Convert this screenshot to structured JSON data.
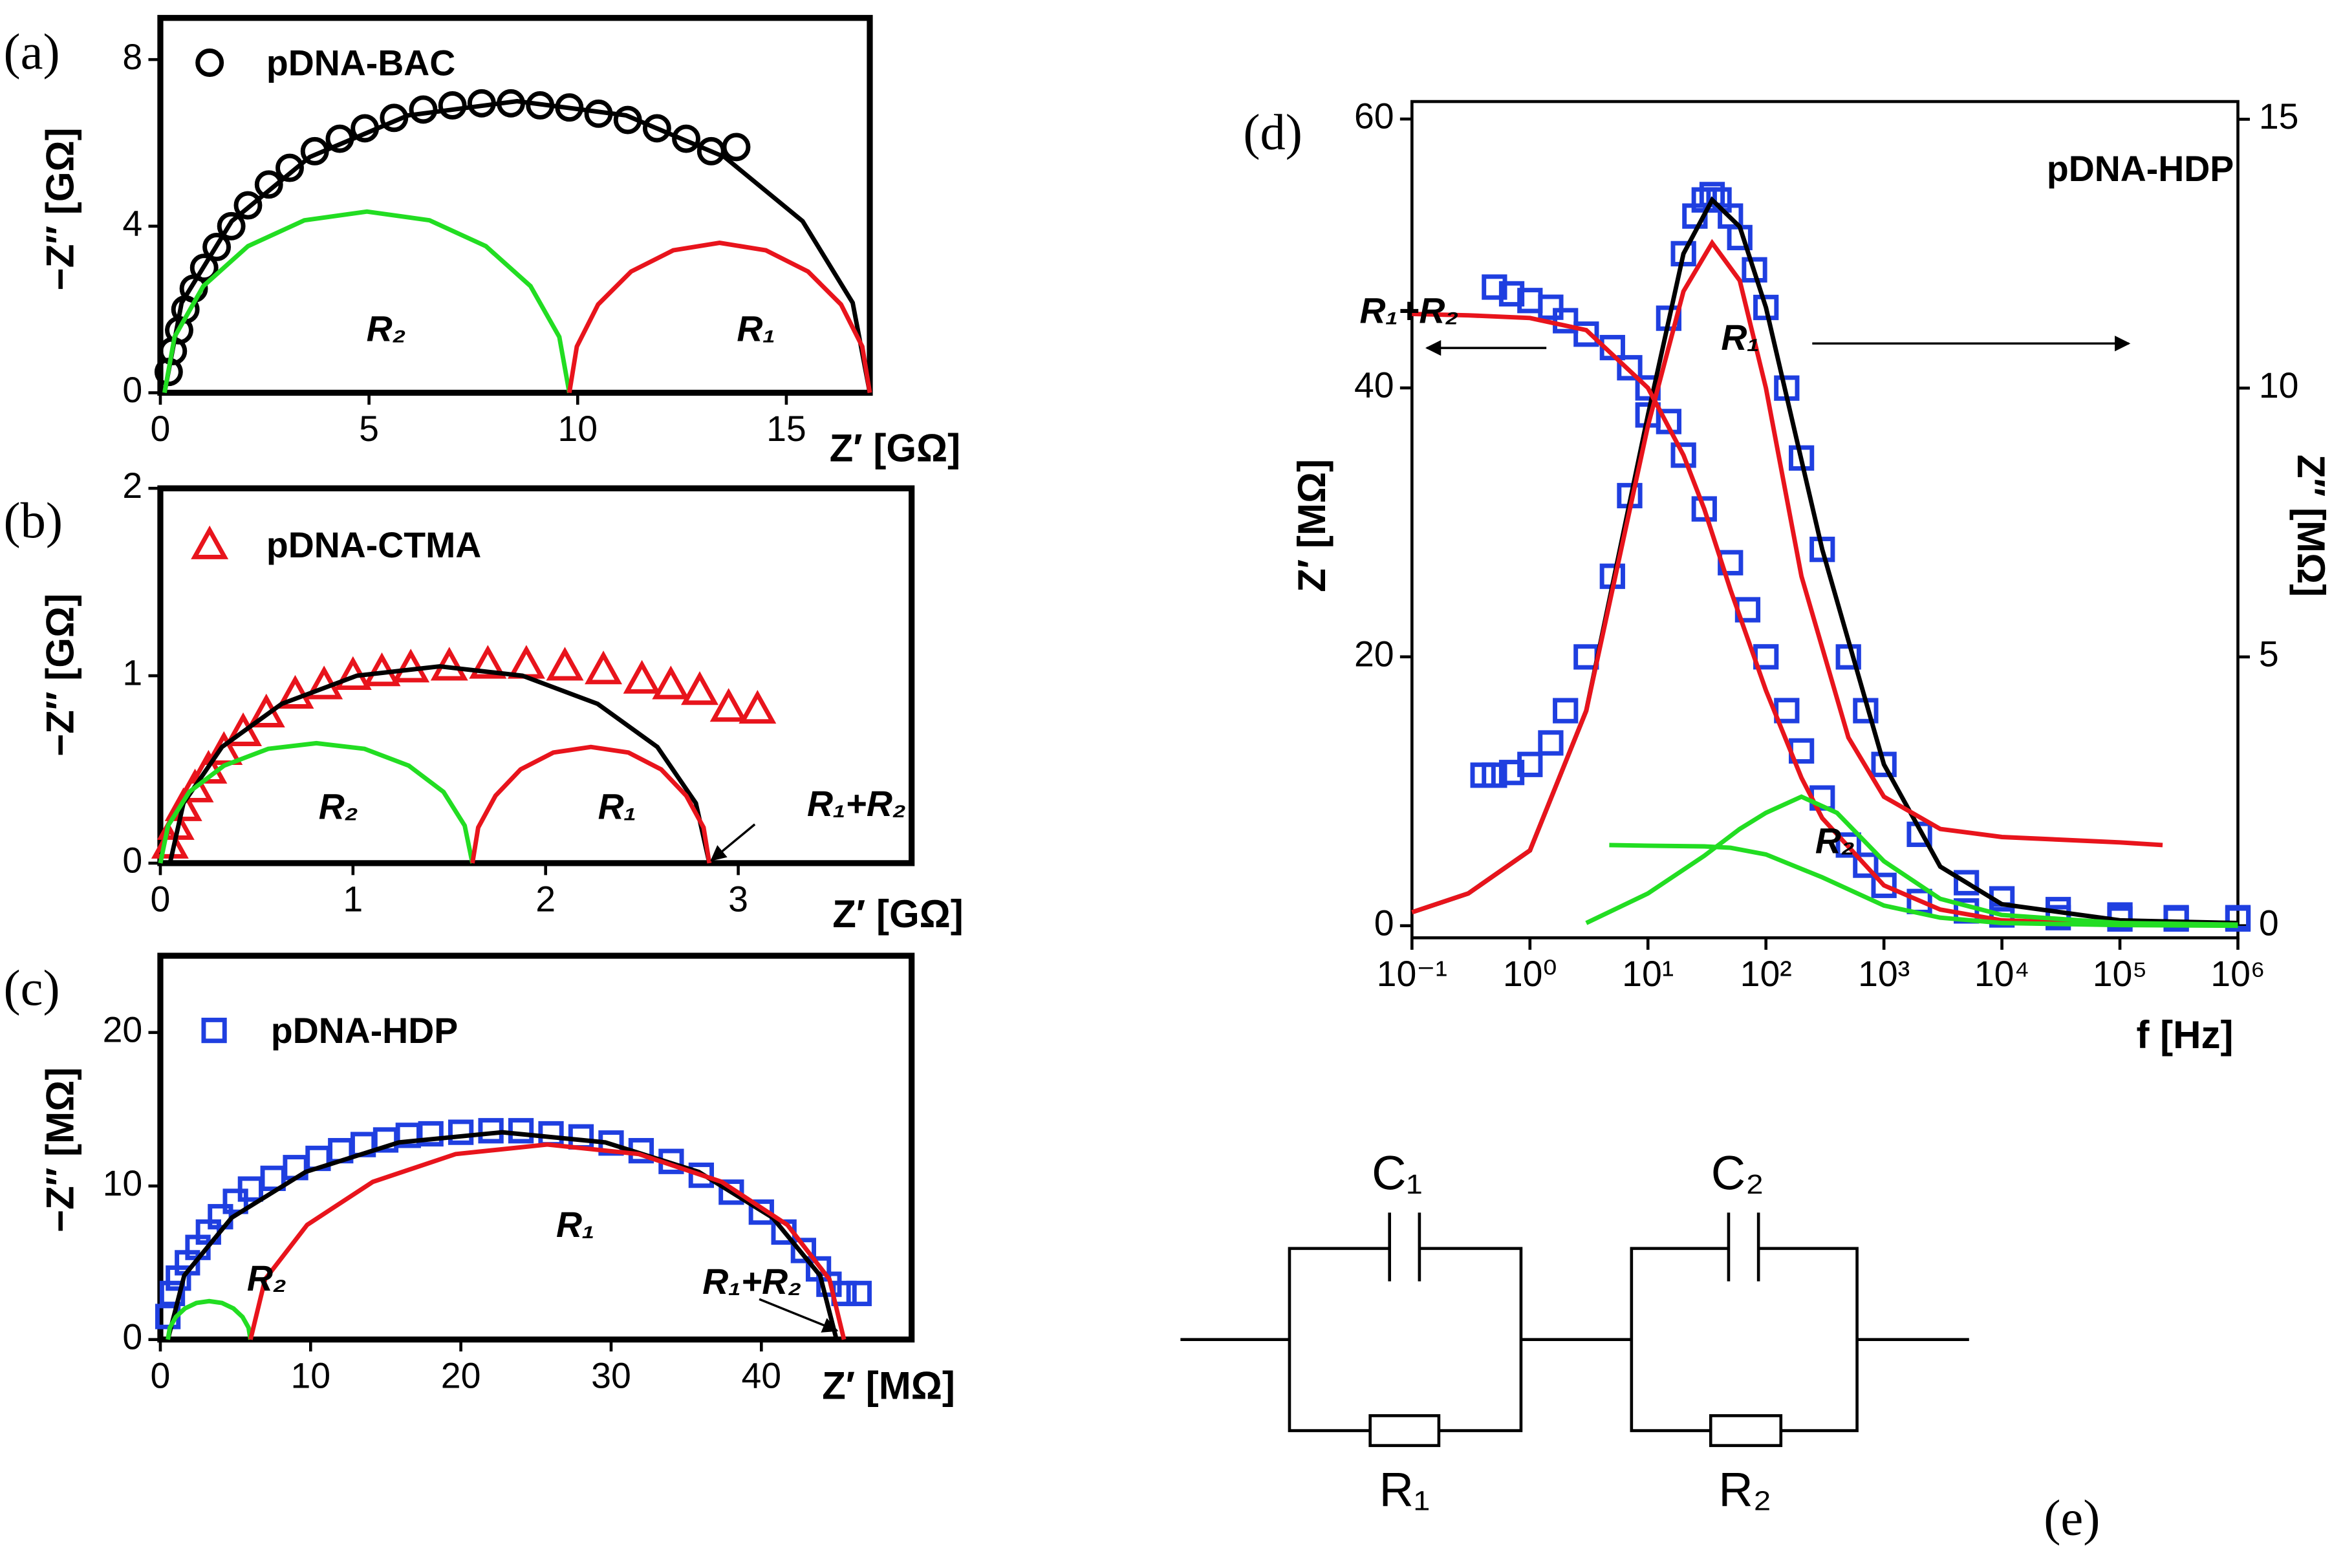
{
  "chart_data": [
    {
      "type": "scatter",
      "panel_label": "(a)",
      "xlabel": "Z′ [GΩ]",
      "ylabel": "−Z″ [GΩ]",
      "xlim": [
        0,
        17
      ],
      "xticks": [
        0,
        5,
        10,
        15
      ],
      "ylim": [
        0,
        9
      ],
      "yticks": [
        0,
        4,
        8
      ],
      "legend": "upper left",
      "annotations": [
        "R₂",
        "R₁"
      ],
      "series": [
        {
          "name": "pDNA-BAC",
          "color": "#000000",
          "marker": "circle",
          "x": [
            0.2,
            0.3,
            0.45,
            0.6,
            0.8,
            1.05,
            1.35,
            1.7,
            2.1,
            2.6,
            3.1,
            3.7,
            4.3,
            4.9,
            5.6,
            6.3,
            7.0,
            7.7,
            8.4,
            9.1,
            9.8,
            10.5,
            11.2,
            11.9,
            12.6,
            13.2,
            13.8
          ],
          "values": [
            0.5,
            1.0,
            1.5,
            2.0,
            2.5,
            3.0,
            3.5,
            4.0,
            4.5,
            5.0,
            5.4,
            5.8,
            6.1,
            6.35,
            6.6,
            6.8,
            6.9,
            6.95,
            6.95,
            6.9,
            6.85,
            6.7,
            6.55,
            6.35,
            6.1,
            5.8,
            5.9
          ]
        },
        {
          "color": "#000000",
          "x": [
            0.1,
            0.51,
            1.71,
            3.58,
            5.94,
            8.55,
            11.16,
            13.52,
            15.39,
            16.59,
            17.0
          ],
          "values": [
            0,
            2.16,
            4.12,
            5.66,
            6.66,
            7.0,
            6.66,
            5.66,
            4.12,
            2.16,
            0
          ]
        },
        {
          "color": "#22dd22",
          "x": [
            0.1,
            0.34,
            1.03,
            2.1,
            3.45,
            4.95,
            6.45,
            7.8,
            8.87,
            9.56,
            9.8
          ],
          "values": [
            0,
            1.34,
            2.56,
            3.52,
            4.14,
            4.35,
            4.14,
            3.52,
            2.56,
            1.34,
            0
          ]
        },
        {
          "color": "#e8141c",
          "x": [
            9.8,
            9.98,
            10.49,
            11.28,
            12.29,
            13.4,
            14.51,
            15.52,
            16.31,
            16.82,
            17.0
          ],
          "values": [
            0,
            1.11,
            2.12,
            2.91,
            3.42,
            3.6,
            3.42,
            2.91,
            2.12,
            1.11,
            0
          ]
        }
      ]
    },
    {
      "type": "scatter",
      "panel_label": "(b)",
      "xlabel": "Z′ [GΩ]",
      "ylabel": "−Z″ [GΩ]",
      "xlim": [
        0,
        3.9
      ],
      "xticks": [
        0,
        1,
        2,
        3
      ],
      "ylim": [
        0,
        2
      ],
      "yticks": [
        0,
        1,
        2
      ],
      "legend": "upper left",
      "annotations": [
        "R₂",
        "R₁",
        "R₁+R₂"
      ],
      "series": [
        {
          "name": "pDNA-CTMA",
          "color": "#e8141c",
          "marker": "triangle",
          "x": [
            0.05,
            0.08,
            0.12,
            0.18,
            0.25,
            0.33,
            0.43,
            0.55,
            0.7,
            0.85,
            1.0,
            1.15,
            1.3,
            1.5,
            1.7,
            1.9,
            2.1,
            2.3,
            2.5,
            2.65,
            2.8,
            2.95,
            3.1
          ],
          "values": [
            0.1,
            0.2,
            0.3,
            0.4,
            0.5,
            0.6,
            0.7,
            0.8,
            0.9,
            0.95,
            1.0,
            1.02,
            1.04,
            1.05,
            1.06,
            1.06,
            1.05,
            1.03,
            0.98,
            0.95,
            0.92,
            0.83,
            0.82
          ]
        },
        {
          "color": "#000000",
          "x": [
            0.05,
            0.12,
            0.32,
            0.63,
            1.02,
            1.45,
            1.88,
            2.27,
            2.58,
            2.78,
            2.85
          ],
          "values": [
            0,
            0.32,
            0.62,
            0.85,
            1.0,
            1.05,
            1.0,
            0.85,
            0.62,
            0.32,
            0
          ]
        },
        {
          "color": "#22dd22",
          "x": [
            0,
            0.04,
            0.15,
            0.33,
            0.56,
            0.81,
            1.06,
            1.29,
            1.47,
            1.58,
            1.62
          ],
          "values": [
            0,
            0.2,
            0.38,
            0.52,
            0.61,
            0.64,
            0.61,
            0.52,
            0.38,
            0.2,
            0
          ]
        },
        {
          "color": "#e8141c",
          "x": [
            1.62,
            1.65,
            1.74,
            1.87,
            2.04,
            2.235,
            2.43,
            2.6,
            2.73,
            2.82,
            2.85
          ],
          "values": [
            0,
            0.19,
            0.36,
            0.5,
            0.59,
            0.62,
            0.59,
            0.5,
            0.36,
            0.19,
            0
          ]
        }
      ]
    },
    {
      "type": "scatter",
      "panel_label": "(c)",
      "xlabel": "Z′ [MΩ]",
      "ylabel": "−Z″ [MΩ]",
      "xlim": [
        0,
        50
      ],
      "xticks": [
        0,
        10,
        20,
        30,
        40
      ],
      "ylim": [
        0,
        25
      ],
      "yticks": [
        0,
        10,
        20
      ],
      "legend": "upper left",
      "annotations": [
        "R₂",
        "R₁",
        "R₁+R₂"
      ],
      "series": [
        {
          "name": "pDNA-HDP",
          "color": "#1f3fe0",
          "marker": "square",
          "x": [
            0.5,
            0.8,
            1.2,
            1.8,
            2.5,
            3.2,
            4,
            5,
            6,
            7.5,
            9,
            10.5,
            12,
            13.5,
            15,
            16.5,
            18,
            20,
            22,
            24,
            26,
            28,
            30,
            32,
            34,
            36,
            38,
            40,
            41.5,
            42.8,
            43.8,
            44.5,
            45.5,
            46.5
          ],
          "values": [
            1.5,
            3,
            4,
            5,
            6,
            7,
            8,
            9,
            9.8,
            10.5,
            11.2,
            11.8,
            12.3,
            12.7,
            13,
            13.3,
            13.4,
            13.5,
            13.6,
            13.6,
            13.4,
            13.2,
            12.8,
            12.3,
            11.6,
            10.7,
            9.6,
            8.3,
            7,
            5.8,
            4.6,
            3.6,
            3,
            3
          ]
        },
        {
          "color": "#000000",
          "x": [
            0.5,
            1.59,
            4.75,
            9.67,
            15.88,
            22.75,
            29.62,
            35.83,
            40.75,
            43.91,
            45
          ],
          "values": [
            0,
            4.17,
            7.94,
            10.92,
            12.84,
            13.5,
            12.84,
            10.92,
            7.94,
            4.17,
            0
          ]
        },
        {
          "color": "#22dd22",
          "x": [
            0.5,
            0.63,
            1.03,
            1.63,
            2.4,
            3.25,
            4.1,
            4.87,
            5.47,
            5.87,
            6
          ],
          "values": [
            0,
            0.77,
            1.47,
            2.02,
            2.38,
            2.5,
            2.38,
            2.02,
            1.47,
            0.77,
            0
          ]
        },
        {
          "color": "#e8141c",
          "x": [
            6,
            6.97,
            9.77,
            14.14,
            19.65,
            25.75,
            31.85,
            37.36,
            41.73,
            44.53,
            45.5
          ],
          "values": [
            0,
            3.92,
            7.47,
            10.27,
            12.08,
            12.7,
            12.08,
            10.27,
            7.47,
            3.92,
            0
          ]
        }
      ]
    },
    {
      "type": "scatter",
      "panel_label": "(d)",
      "xlabel": "f [Hz]",
      "ylabel": "Z′ [MΩ]",
      "y2label": "Z″ [MΩ]",
      "xlog": true,
      "xlim": [
        0.1,
        1000000
      ],
      "xticks": [
        {
          "value": 0.1,
          "label": "10⁻¹"
        },
        {
          "value": 1,
          "label": "10⁰"
        },
        {
          "value": 10,
          "label": "10¹"
        },
        {
          "value": 100,
          "label": "10²"
        },
        {
          "value": 1000,
          "label": "10³"
        },
        {
          "value": 10000,
          "label": "10⁴"
        },
        {
          "value": 100000,
          "label": "10⁵"
        },
        {
          "value": 1000000,
          "label": "10⁶"
        }
      ],
      "ylim": [
        -0.9,
        61.3
      ],
      "yticks": [
        0,
        20,
        40,
        60
      ],
      "y2lim": [
        -0.225,
        15.33
      ],
      "y2ticks": [
        0,
        5,
        10,
        15
      ],
      "annotations": [
        "pDNA-HDP",
        "R₁+R₂",
        "R₁",
        "R₂"
      ],
      "series": [
        {
          "color": "#1f3fe0",
          "marker": "square",
          "x": [
            0.5,
            0.7,
            1,
            1.5,
            2,
            3,
            5,
            7,
            10,
            15,
            20,
            30,
            50,
            70,
            100,
            150,
            200,
            300,
            500,
            700,
            1000,
            2000,
            5000,
            10000,
            30000,
            100000,
            300000,
            1000000
          ],
          "values": [
            47.5,
            47,
            46.5,
            46,
            45,
            44,
            43,
            41.5,
            40,
            37.5,
            35,
            31,
            27,
            23.5,
            20,
            16,
            13,
            9.5,
            6,
            4.5,
            3,
            1.8,
            1.1,
            0.8,
            0.6,
            0.5,
            0.5,
            0.5
          ]
        },
        {
          "color": "#1f3fe0",
          "marker": "square",
          "axis": "y2",
          "x": [
            0.4,
            0.5,
            0.7,
            1,
            1.5,
            2,
            3,
            5,
            7,
            10,
            15,
            20,
            25,
            30,
            35,
            40,
            50,
            60,
            80,
            100,
            150,
            200,
            300,
            500,
            700,
            1000,
            2000,
            5000,
            10000,
            30000,
            100000,
            300000,
            1000000
          ],
          "values": [
            2.8,
            2.8,
            2.85,
            3,
            3.4,
            4,
            5,
            6.5,
            8,
            9.5,
            11.3,
            12.5,
            13.2,
            13.5,
            13.6,
            13.5,
            13.2,
            12.8,
            12.2,
            11.5,
            10,
            8.7,
            7,
            5,
            4,
            3,
            1.7,
            0.8,
            0.5,
            0.3,
            0.2,
            0.15,
            0.15
          ]
        },
        {
          "color": "#000000",
          "axis": "y2",
          "x": [
            0.1,
            0.3,
            1,
            3,
            10,
            20,
            35,
            60,
            100,
            300,
            1000,
            3000,
            10000,
            100000,
            1000000
          ],
          "values": [
            0.25,
            0.6,
            1.4,
            4,
            9.5,
            12.5,
            13.5,
            13,
            11.5,
            7,
            3,
            1.1,
            0.4,
            0.1,
            0.05
          ]
        },
        {
          "color": "#e8141c",
          "x": [
            0.1,
            0.3,
            1,
            3,
            10,
            20,
            30,
            50,
            100,
            200,
            300,
            1000,
            3000,
            10000,
            100000
          ],
          "values": [
            45.5,
            45.4,
            45.2,
            44.3,
            40,
            35,
            31,
            25,
            17.5,
            11,
            8,
            3,
            1.2,
            0.4,
            0.1
          ]
        },
        {
          "color": "#e8141c",
          "axis": "y2",
          "x": [
            0.1,
            0.3,
            1,
            3,
            10,
            20,
            35,
            60,
            100,
            200,
            500,
            1000,
            3000,
            10000,
            100000,
            230000
          ],
          "values": [
            0.25,
            0.6,
            1.4,
            4,
            9.3,
            11.8,
            12.7,
            12,
            10,
            6.5,
            3.5,
            2.4,
            1.8,
            1.65,
            1.55,
            1.5
          ]
        },
        {
          "color": "#22dd22",
          "x": [
            4.7,
            10,
            30,
            50,
            100,
            300,
            1000,
            3000,
            10000,
            100000,
            1000000
          ],
          "values": [
            6,
            5.95,
            5.9,
            5.8,
            5.3,
            3.6,
            1.5,
            0.6,
            0.2,
            0.05,
            0
          ]
        },
        {
          "color": "#22dd22",
          "axis": "y2",
          "x": [
            3,
            10,
            30,
            60,
            100,
            200,
            400,
            1000,
            3000,
            10000,
            100000,
            1000000
          ],
          "values": [
            0.05,
            0.6,
            1.3,
            1.8,
            2.1,
            2.4,
            2.1,
            1.2,
            0.5,
            0.2,
            0.05,
            0.02
          ]
        }
      ]
    }
  ],
  "diagram": {
    "labels": [
      "C₁",
      "R₁",
      "C₂",
      "R₂"
    ],
    "panel_label": "(e)"
  }
}
